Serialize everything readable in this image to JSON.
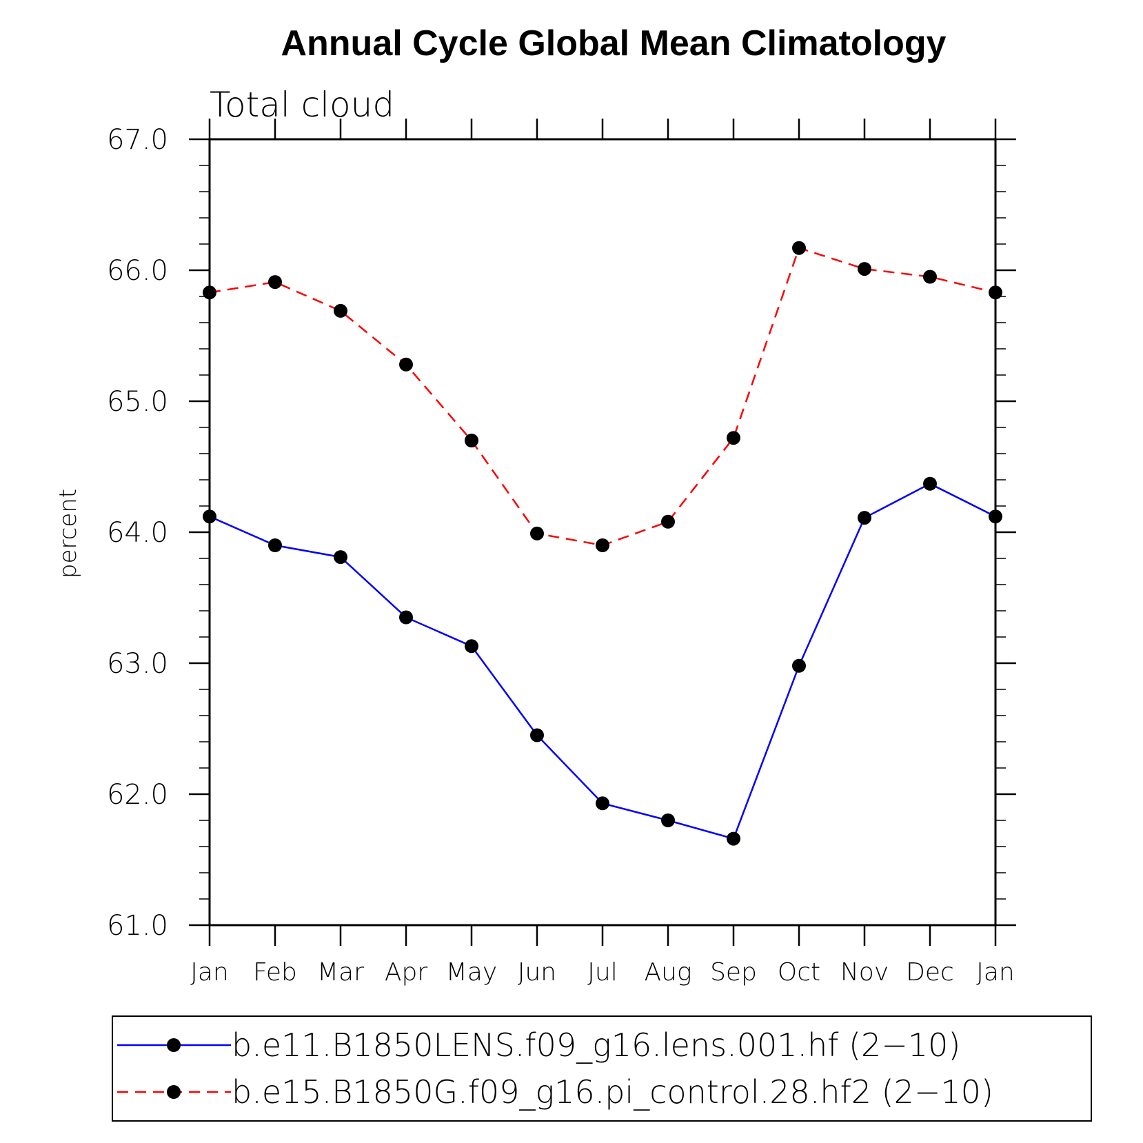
{
  "chart_data": {
    "type": "line",
    "title": "Annual Cycle Global Mean Climatology",
    "subtitle": "Total cloud",
    "xlabel": "",
    "ylabel": "percent",
    "categories": [
      "Jan",
      "Feb",
      "Mar",
      "Apr",
      "May",
      "Jun",
      "Jul",
      "Aug",
      "Sep",
      "Oct",
      "Nov",
      "Dec",
      "Jan"
    ],
    "ylim": [
      61.0,
      67.0
    ],
    "yticks": [
      "61.0",
      "62.0",
      "63.0",
      "64.0",
      "65.0",
      "66.0",
      "67.0"
    ],
    "series": [
      {
        "name": "b.e11.B1850LENS.f09_g16.lens.001.hf (2−10)",
        "color": "#0000ff",
        "dash": "solid",
        "values": [
          64.12,
          63.9,
          63.81,
          63.35,
          63.13,
          62.45,
          61.93,
          61.8,
          61.66,
          62.98,
          64.11,
          64.37,
          64.12
        ]
      },
      {
        "name": "b.e15.B1850G.f09_g16.pi_control.28.hf2 (2−10)",
        "color": "#ff0000",
        "dash": "dashed",
        "values": [
          65.83,
          65.91,
          65.69,
          65.28,
          64.7,
          63.99,
          63.9,
          64.08,
          64.72,
          66.17,
          66.01,
          65.95,
          65.83
        ]
      }
    ],
    "legend_position": "bottom"
  }
}
